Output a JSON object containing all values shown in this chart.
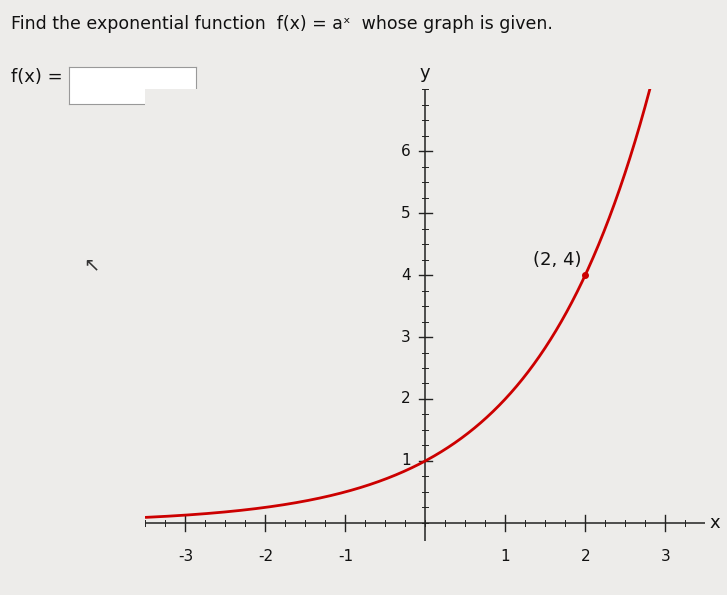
{
  "title_line1": "Find the exponential function  f(x) = aˣ  whose graph is given.",
  "fx_label": "f(x) =",
  "point_label": "(2, 4)",
  "point_x": 2,
  "point_y": 4,
  "base": 2,
  "x_min": -3.5,
  "x_max": 3.5,
  "y_min": -0.3,
  "y_max": 7.0,
  "x_ticks": [
    -3,
    -2,
    -1,
    1,
    2,
    3
  ],
  "y_ticks": [
    1,
    2,
    3,
    4,
    5,
    6
  ],
  "curve_color": "#cc0000",
  "curve_linewidth": 2.0,
  "background_color": "#edecea",
  "axis_color": "#222222",
  "xlabel": "x",
  "ylabel": "y",
  "title_fontsize": 12.5,
  "label_fontsize": 13,
  "tick_fontsize": 11,
  "annotation_fontsize": 13
}
